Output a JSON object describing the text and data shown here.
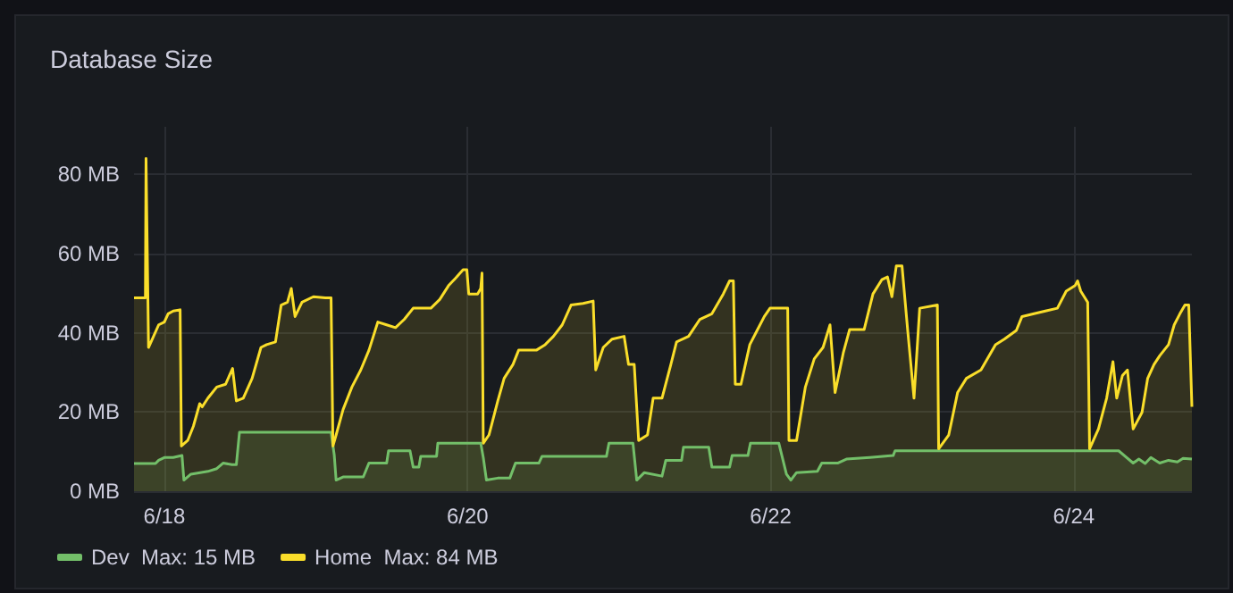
{
  "chart_data": {
    "type": "area",
    "title": "Database Size",
    "xlim": [
      "--06-17T19:12",
      "--06-24T18:42"
    ],
    "ylim": [
      0,
      92
    ],
    "xticks": [
      {
        "value": "--06-18",
        "label": "6/18"
      },
      {
        "value": "--06-20",
        "label": "6/20"
      },
      {
        "value": "--06-22",
        "label": "6/22"
      },
      {
        "value": "--06-24",
        "label": "6/24"
      }
    ],
    "yticks": [
      {
        "value": 0,
        "label": "0 MB"
      },
      {
        "value": 20,
        "label": "20 MB"
      },
      {
        "value": 40,
        "label": "40 MB"
      },
      {
        "value": 60,
        "label": "60 MB"
      },
      {
        "value": 80,
        "label": "80 MB"
      }
    ],
    "grid": true,
    "legend": "bottom left",
    "marker": "none",
    "line_style": "solid",
    "series": [
      {
        "name": "Dev  Max: 15 MB",
        "color": "#73bf69",
        "x": [
          "--06-17T19:12",
          "--06-17T22:36",
          "--06-17T23:06",
          "--06-18T00:00",
          "--06-18T01:24",
          "--06-18T02:48",
          "--06-18T03:06",
          "--06-18T04:12",
          "--06-18T06:54",
          "--06-18T08:18",
          "--06-18T09:18",
          "--06-18T10:42",
          "--06-18T11:24",
          "--06-18T11:54",
          "--06-19T02:24",
          "--06-19T02:54",
          "--06-19T03:12",
          "--06-19T04:18",
          "--06-19T07:30",
          "--06-19T08:24",
          "--06-19T11:12",
          "--06-19T11:30",
          "--06-19T14:54",
          "--06-19T15:24",
          "--06-19T16:18",
          "--06-19T16:36",
          "--06-19T19:06",
          "--06-19T19:18",
          "--06-20T02:06",
          "--06-20T02:30",
          "--06-20T03:00",
          "--06-20T04:48",
          "--06-20T06:42",
          "--06-20T07:36",
          "--06-20T11:18",
          "--06-20T11:48",
          "--06-20T22:00",
          "--06-20T22:24",
          "--06-21T02:12",
          "--06-21T02:48",
          "--06-21T04:00",
          "--06-21T06:48",
          "--06-21T07:24",
          "--06-21T09:54",
          "--06-21T10:12",
          "--06-21T14:12",
          "--06-21T14:42",
          "--06-21T17:30",
          "--06-21T17:54",
          "--06-21T20:24",
          "--06-21T20:48",
          "--06-22T01:18",
          "--06-22T02:30",
          "--06-22T03:12",
          "--06-22T04:06",
          "--06-22T07:24",
          "--06-22T08:06",
          "--06-22T10:36",
          "--06-22T12:00",
          "--06-22T15:42",
          "--06-22T19:24",
          "--06-22T19:42",
          "--06-24T07:06",
          "--06-24T09:24",
          "--06-24T10:18",
          "--06-24T11:18",
          "--06-24T12:12",
          "--06-24T13:36",
          "--06-24T15:00",
          "--06-24T16:24",
          "--06-24T17:18",
          "--06-24T18:42"
        ],
        "values": [
          7.0,
          7.0,
          7.8,
          8.5,
          8.5,
          9.0,
          2.8,
          4.3,
          5.0,
          5.7,
          7.1,
          6.7,
          6.7,
          14.9,
          14.9,
          9.2,
          2.8,
          3.6,
          3.6,
          7.1,
          7.1,
          10.2,
          10.2,
          6.1,
          6.1,
          8.8,
          8.8,
          12.1,
          12.1,
          8.5,
          2.8,
          3.3,
          3.3,
          7.1,
          7.1,
          8.8,
          8.8,
          12.1,
          12.1,
          2.8,
          4.7,
          3.8,
          7.8,
          7.8,
          11.1,
          11.1,
          6.1,
          6.1,
          9.0,
          9.0,
          12.1,
          12.1,
          4.3,
          2.8,
          4.7,
          5.0,
          7.1,
          7.1,
          8.1,
          8.5,
          9.0,
          10.2,
          10.2,
          7.1,
          8.1,
          7.0,
          8.5,
          7.1,
          7.8,
          7.4,
          8.3,
          8.1
        ]
      },
      {
        "name": "Home  Max: 84 MB",
        "color": "#fade2a",
        "x": [
          "--06-17T19:12",
          "--06-17T21:00",
          "--06-17T21:06",
          "--06-17T21:30",
          "--06-17T22:06",
          "--06-17T23:06",
          "--06-18T00:00",
          "--06-18T00:36",
          "--06-18T01:24",
          "--06-18T02:30",
          "--06-18T02:42",
          "--06-18T03:42",
          "--06-18T04:36",
          "--06-18T05:36",
          "--06-18T06:00",
          "--06-18T06:54",
          "--06-18T08:18",
          "--06-18T09:42",
          "--06-18T10:48",
          "--06-18T11:24",
          "--06-18T12:30",
          "--06-18T13:54",
          "--06-18T15:18",
          "--06-18T16:12",
          "--06-18T17:36",
          "--06-18T18:30",
          "--06-18T19:30",
          "--06-18T20:06",
          "--06-18T20:42",
          "--06-18T21:48",
          "--06-18T23:36",
          "--06-19T01:30",
          "--06-19T02:24",
          "--06-19T02:42",
          "--06-19T03:12",
          "--06-19T04:18",
          "--06-19T05:42",
          "--06-19T07:06",
          "--06-19T08:24",
          "--06-19T09:48",
          "--06-19T11:12",
          "--06-19T12:36",
          "--06-19T14:00",
          "--06-19T15:24",
          "--06-19T18:12",
          "--06-19T19:36",
          "--06-19T21:00",
          "--06-19T22:18",
          "--06-19T23:18",
          "--06-19T23:54",
          "--06-20T00:12",
          "--06-20T01:36",
          "--06-20T02:06",
          "--06-20T02:18",
          "--06-20T02:30",
          "--06-20T03:24",
          "--06-20T04:48",
          "--06-20T05:48",
          "--06-20T07:12",
          "--06-20T08:06",
          "--06-20T10:54",
          "--06-20T12:18",
          "--06-20T13:36",
          "--06-20T15:00",
          "--06-20T16:24",
          "--06-20T18:18",
          "--06-20T19:54",
          "--06-20T20:18",
          "--06-20T21:30",
          "--06-20T22:54",
          "--06-21T00:48",
          "--06-21T01:30",
          "--06-21T02:24",
          "--06-21T03:06",
          "--06-21T04:30",
          "--06-21T05:24",
          "--06-21T06:48",
          "--06-21T08:12",
          "--06-21T09:06",
          "--06-21T11:00",
          "--06-21T12:48",
          "--06-21T14:42",
          "--06-21T16:30",
          "--06-21T17:30",
          "--06-21T18:06",
          "--06-21T18:24",
          "--06-21T19:18",
          "--06-21T20:42",
          "--06-21T21:36",
          "--06-21T23:00",
          "--06-21T23:54",
          "--06-22T02:42",
          "--06-22T02:54",
          "--06-22T04:06",
          "--06-22T05:30",
          "--06-22T06:54",
          "--06-22T08:18",
          "--06-22T09:24",
          "--06-22T10:12",
          "--06-22T11:30",
          "--06-22T12:30",
          "--06-22T14:48",
          "--06-22T16:12",
          "--06-22T17:36",
          "--06-22T18:30",
          "--06-22T19:12",
          "--06-22T19:54",
          "--06-22T20:48",
          "--06-22T21:42",
          "--06-22T22:42",
          "--06-22T23:36",
          "--06-23T02:24",
          "--06-23T02:36",
          "--06-23T04:12",
          "--06-23T05:36",
          "--06-23T07:00",
          "--06-23T09:18",
          "--06-23T11:36",
          "--06-23T13:00",
          "--06-23T14:54",
          "--06-23T15:48",
          "--06-23T17:42",
          "--06-23T19:30",
          "--06-23T21:24",
          "--06-23T22:48",
          "--06-24T00:12",
          "--06-24T00:36",
          "--06-24T01:06",
          "--06-24T02:12",
          "--06-24T02:30",
          "--06-24T03:54",
          "--06-24T05:12",
          "--06-24T06:12",
          "--06-24T06:48",
          "--06-24T07:42",
          "--06-24T08:30",
          "--06-24T09:24",
          "--06-24T10:48",
          "--06-24T11:42",
          "--06-24T12:42",
          "--06-24T13:36",
          "--06-24T15:00",
          "--06-24T15:54",
          "--06-24T16:48",
          "--06-24T17:36",
          "--06-24T18:12",
          "--06-24T18:42"
        ],
        "values": [
          48.8,
          48.8,
          84.0,
          36.3,
          38.4,
          42.0,
          42.7,
          44.8,
          45.5,
          45.8,
          11.4,
          12.8,
          16.4,
          22.1,
          21.3,
          23.5,
          26.3,
          27.0,
          31.0,
          22.8,
          23.5,
          28.5,
          36.3,
          37.0,
          37.7,
          47.0,
          47.7,
          51.2,
          44.1,
          47.7,
          49.1,
          48.8,
          48.8,
          11.4,
          14.2,
          20.6,
          26.3,
          30.6,
          35.6,
          42.7,
          42.0,
          41.3,
          43.4,
          46.2,
          46.2,
          48.4,
          51.9,
          54.1,
          55.9,
          55.9,
          49.8,
          49.8,
          51.2,
          55.1,
          12.1,
          14.2,
          22.8,
          28.5,
          32.0,
          35.6,
          35.6,
          37.0,
          39.1,
          42.0,
          47.0,
          47.4,
          48.0,
          30.6,
          36.3,
          38.4,
          39.1,
          32.0,
          32.0,
          12.8,
          14.2,
          23.5,
          23.5,
          32.0,
          37.7,
          39.1,
          43.4,
          44.8,
          49.8,
          53.1,
          53.1,
          27.0,
          27.0,
          37.0,
          39.8,
          44.1,
          46.2,
          46.2,
          12.8,
          12.8,
          26.3,
          33.4,
          36.3,
          42.0,
          24.9,
          34.9,
          40.8,
          40.8,
          49.8,
          53.4,
          54.1,
          49.1,
          56.9,
          56.9,
          40.6,
          23.5,
          46.2,
          47.0,
          10.7,
          14.2,
          24.9,
          28.5,
          30.6,
          37.0,
          38.4,
          40.6,
          44.1,
          44.8,
          45.5,
          46.2,
          50.5,
          51.9,
          53.1,
          50.5,
          47.7,
          10.7,
          15.7,
          23.5,
          32.7,
          23.5,
          29.2,
          30.6,
          15.7,
          19.9,
          28.5,
          32.0,
          34.2,
          37.0,
          42.0,
          44.8,
          47.0,
          47.0,
          21.3
        ]
      }
    ]
  }
}
